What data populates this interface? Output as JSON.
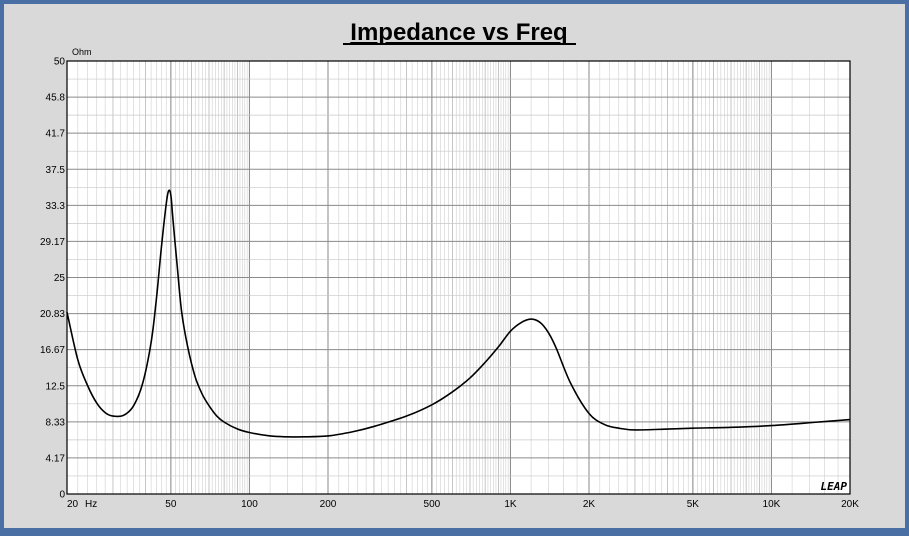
{
  "chart_data": {
    "type": "line",
    "title": "Impedance vs Freq",
    "yunit": "Ohm",
    "xlabel": "",
    "ylabel": "",
    "x_scale": "log",
    "xlim": [
      20,
      20000
    ],
    "ylim": [
      0,
      50
    ],
    "grid": true,
    "ytick_labels": [
      "50",
      "45.8",
      "41.7",
      "37.5",
      "33.3",
      "29.17",
      "25",
      "20.83",
      "16.67",
      "12.5",
      "8.33",
      "4.17",
      "0"
    ],
    "ytick_values": [
      50,
      45.8,
      41.7,
      37.5,
      33.3,
      29.17,
      25,
      20.83,
      16.67,
      12.5,
      8.33,
      4.17,
      0
    ],
    "xtick_labels": [
      "20",
      "50",
      "100",
      "200",
      "500",
      "1K",
      "2K",
      "5K",
      "10K",
      "20K"
    ],
    "xtick_values": [
      20,
      50,
      100,
      200,
      500,
      1000,
      2000,
      5000,
      10000,
      20000
    ],
    "x_first_unit": "Hz",
    "series": [
      {
        "color": "#000000",
        "x": [
          20,
          22,
          24,
          26,
          28,
          30,
          33,
          36,
          39,
          42,
          44,
          46,
          48,
          49,
          50,
          51,
          53,
          55,
          58,
          62,
          66,
          70,
          75,
          80,
          90,
          100,
          120,
          140,
          160,
          200,
          250,
          300,
          400,
          500,
          600,
          700,
          800,
          900,
          1000,
          1100,
          1200,
          1300,
          1400,
          1500,
          1700,
          2000,
          2300,
          2600,
          3000,
          4000,
          5000,
          7000,
          10000,
          15000,
          20000
        ],
        "y": [
          21,
          15.5,
          12.5,
          10.5,
          9.4,
          9.0,
          9.1,
          10.2,
          12.8,
          17.5,
          22.5,
          28.5,
          33.5,
          35.0,
          34.5,
          31.5,
          26.0,
          21.0,
          17.0,
          13.5,
          11.5,
          10.2,
          9.0,
          8.3,
          7.5,
          7.1,
          6.7,
          6.6,
          6.6,
          6.7,
          7.2,
          7.8,
          9.0,
          10.3,
          11.8,
          13.4,
          15.2,
          17.0,
          18.8,
          19.8,
          20.2,
          19.8,
          18.6,
          16.8,
          12.8,
          9.3,
          8.0,
          7.6,
          7.4,
          7.5,
          7.6,
          7.7,
          7.9,
          8.3,
          8.6
        ]
      }
    ]
  },
  "logo_text": "LEAP"
}
